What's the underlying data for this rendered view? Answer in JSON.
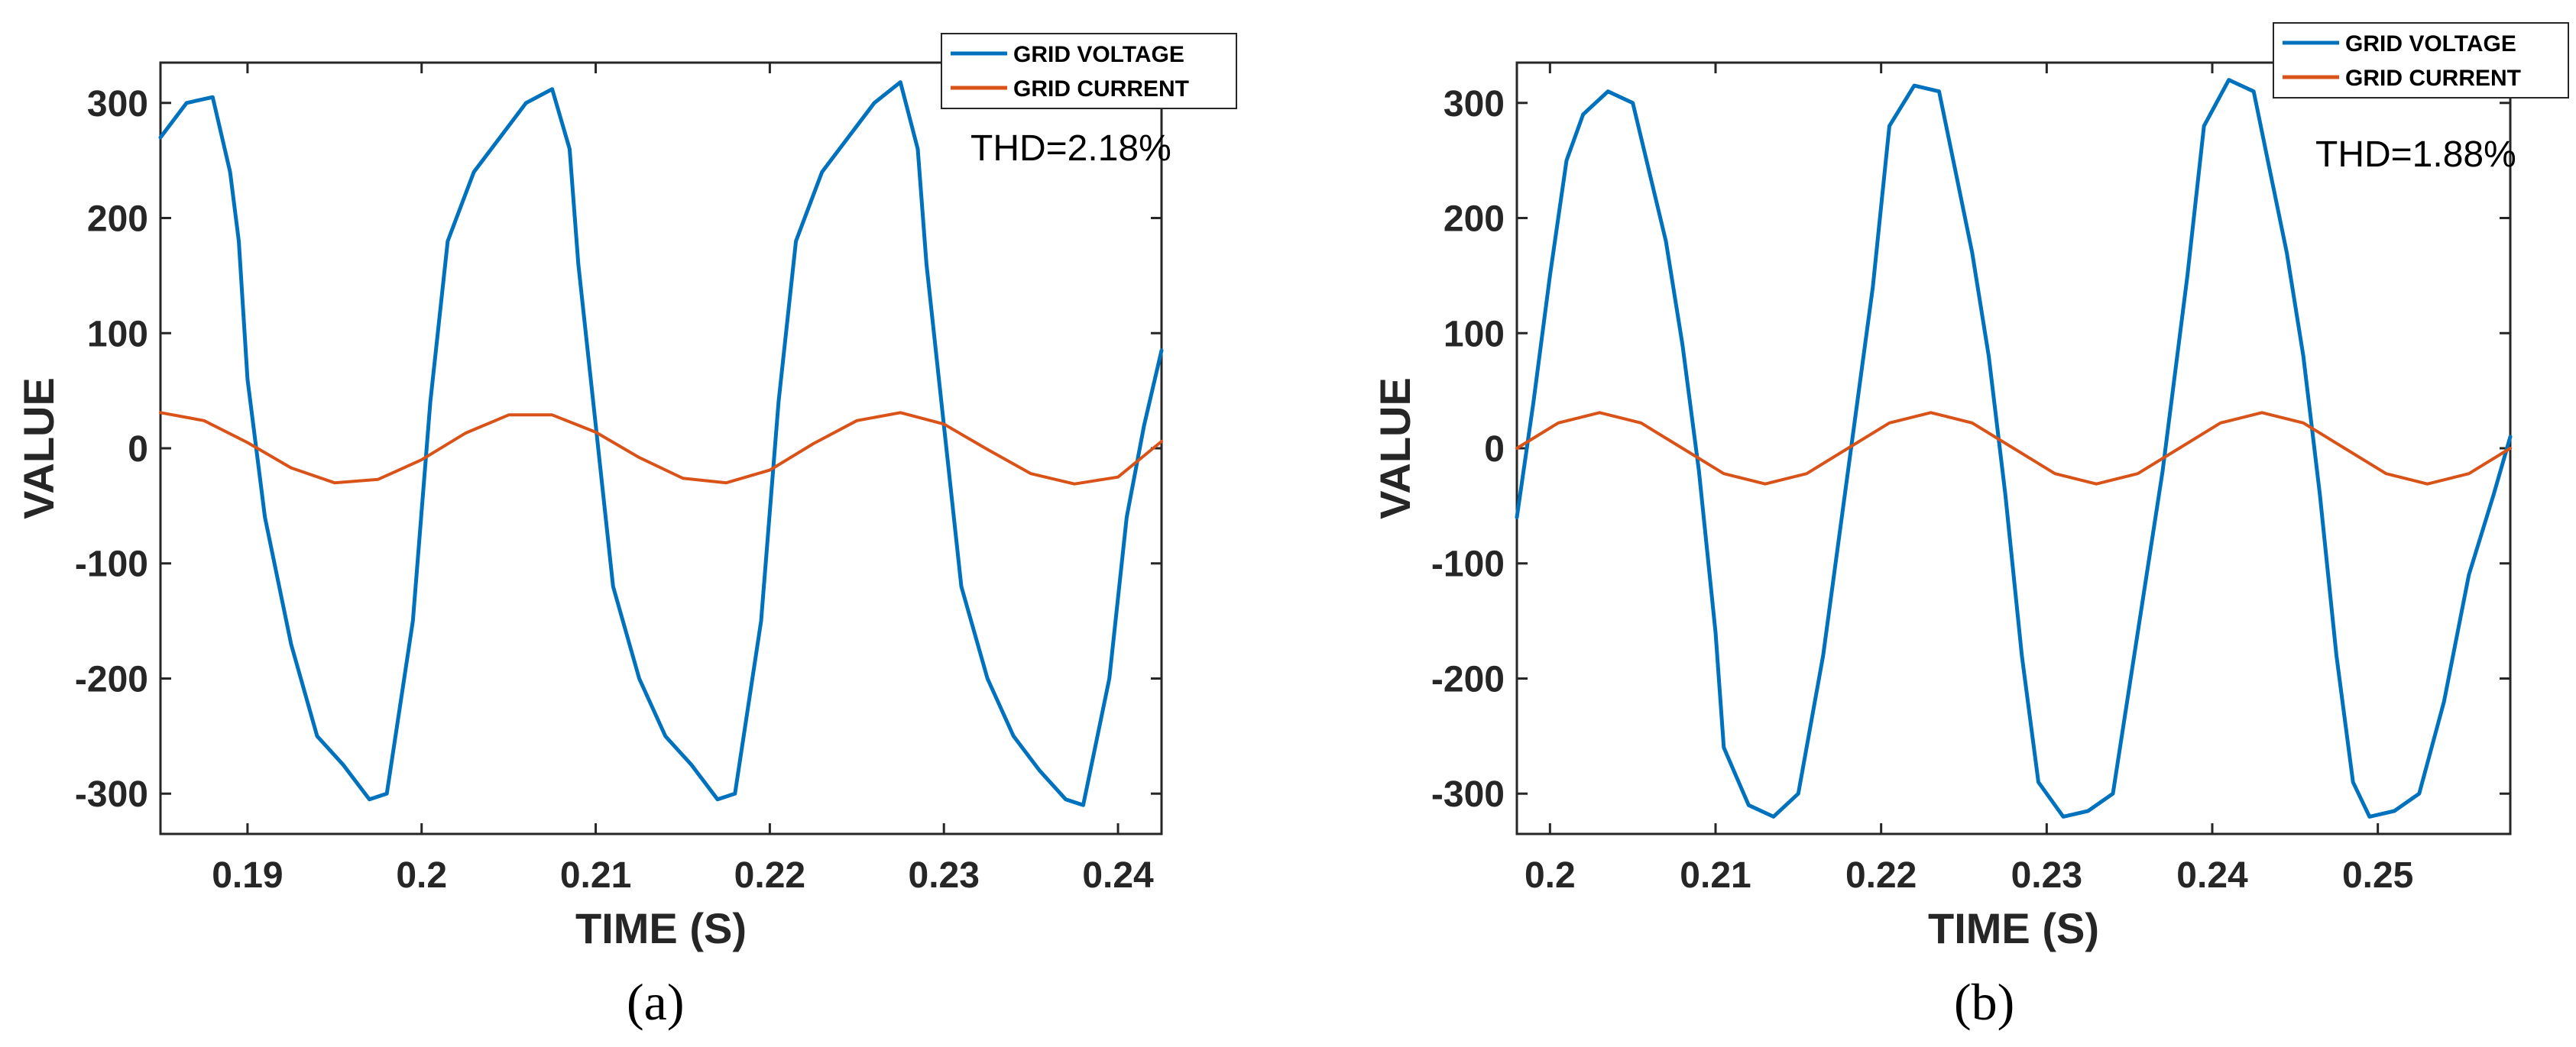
{
  "figure": {
    "panels": [
      "(a)",
      "(b)"
    ]
  },
  "colors": {
    "voltage": "#0072BD",
    "current": "#D95319",
    "axis": "#262626"
  },
  "chart_data": [
    {
      "type": "line",
      "panel_label": "(a)",
      "xlabel": "TIME (S)",
      "ylabel": "VALUE",
      "xlim": [
        0.185,
        0.2425
      ],
      "ylim": [
        -335,
        335
      ],
      "xticks": [
        0.19,
        0.2,
        0.21,
        0.22,
        0.23,
        0.24
      ],
      "xtick_labels": [
        "0.19",
        "0.2",
        "0.21",
        "0.22",
        "0.23",
        "0.24"
      ],
      "yticks": [
        300,
        200,
        100,
        0,
        -100,
        -200,
        -300
      ],
      "ytick_labels": [
        "300",
        "200",
        "100",
        "0",
        "-100",
        "-200",
        "-300"
      ],
      "annotation": "THD=2.18%",
      "legend": {
        "position": "top-right",
        "entries": [
          "GRID VOLTAGE",
          "GRID CURRENT"
        ]
      },
      "series": [
        {
          "name": "GRID VOLTAGE",
          "x": [
            0.185,
            0.1865,
            0.188,
            0.189,
            0.1895,
            0.19,
            0.191,
            0.1925,
            0.194,
            0.1955,
            0.197,
            0.198,
            0.1995,
            0.2005,
            0.2015,
            0.203,
            0.2045,
            0.206,
            0.2075,
            0.2085,
            0.209,
            0.21,
            0.211,
            0.2125,
            0.214,
            0.2155,
            0.217,
            0.218,
            0.2195,
            0.2205,
            0.2215,
            0.223,
            0.2245,
            0.226,
            0.2275,
            0.2285,
            0.229,
            0.23,
            0.231,
            0.2325,
            0.234,
            0.2355,
            0.237,
            0.238,
            0.2395,
            0.2405,
            0.2415,
            0.2425
          ],
          "y": [
            270,
            300,
            305,
            240,
            180,
            60,
            -60,
            -170,
            -250,
            -275,
            -305,
            -300,
            -150,
            40,
            180,
            240,
            270,
            300,
            312,
            260,
            160,
            20,
            -120,
            -200,
            -250,
            -275,
            -305,
            -300,
            -150,
            40,
            180,
            240,
            270,
            300,
            318,
            260,
            160,
            20,
            -120,
            -200,
            -250,
            -280,
            -305,
            -310,
            -200,
            -60,
            20,
            85
          ]
        },
        {
          "name": "GRID CURRENT",
          "x": [
            0.185,
            0.1875,
            0.19,
            0.1925,
            0.195,
            0.1975,
            0.2,
            0.2025,
            0.205,
            0.2075,
            0.21,
            0.2125,
            0.215,
            0.2175,
            0.22,
            0.2225,
            0.225,
            0.2275,
            0.23,
            0.2325,
            0.235,
            0.2375,
            0.24,
            0.2425
          ],
          "y": [
            31,
            24,
            5,
            -17,
            -30,
            -27,
            -10,
            13,
            29,
            29,
            14,
            -8,
            -26,
            -30,
            -19,
            4,
            24,
            31,
            21,
            -1,
            -22,
            -31,
            -25,
            6
          ]
        }
      ]
    },
    {
      "type": "line",
      "panel_label": "(b)",
      "xlabel": "TIME (S)",
      "ylabel": "VALUE",
      "xlim": [
        0.198,
        0.258
      ],
      "ylim": [
        -335,
        335
      ],
      "xticks": [
        0.2,
        0.21,
        0.22,
        0.23,
        0.24,
        0.25
      ],
      "xtick_labels": [
        "0.2",
        "0.21",
        "0.22",
        "0.23",
        "0.24",
        "0.25"
      ],
      "yticks": [
        300,
        200,
        100,
        0,
        -100,
        -200,
        -300
      ],
      "ytick_labels": [
        "300",
        "200",
        "100",
        "0",
        "-100",
        "-200",
        "-300"
      ],
      "annotation": "THD=1.88%",
      "legend": {
        "position": "top-right",
        "entries": [
          "GRID VOLTAGE",
          "GRID CURRENT"
        ]
      },
      "series": [
        {
          "name": "GRID VOLTAGE",
          "x": [
            0.198,
            0.199,
            0.2,
            0.201,
            0.202,
            0.2035,
            0.205,
            0.206,
            0.207,
            0.208,
            0.209,
            0.21,
            0.2105,
            0.212,
            0.2135,
            0.215,
            0.2165,
            0.218,
            0.2195,
            0.2205,
            0.222,
            0.2235,
            0.2245,
            0.2255,
            0.2265,
            0.2275,
            0.2285,
            0.2295,
            0.231,
            0.2325,
            0.234,
            0.2355,
            0.237,
            0.2385,
            0.2395,
            0.241,
            0.2425,
            0.2435,
            0.2445,
            0.2455,
            0.2465,
            0.2475,
            0.2485,
            0.2495,
            0.251,
            0.2525,
            0.254,
            0.2555,
            0.257,
            0.258
          ],
          "y": [
            -60,
            40,
            150,
            250,
            290,
            310,
            300,
            240,
            180,
            90,
            -20,
            -160,
            -260,
            -310,
            -320,
            -300,
            -180,
            -20,
            140,
            280,
            315,
            310,
            240,
            170,
            80,
            -40,
            -180,
            -290,
            -320,
            -315,
            -300,
            -160,
            -20,
            150,
            280,
            320,
            310,
            240,
            170,
            80,
            -40,
            -180,
            -290,
            -320,
            -315,
            -300,
            -220,
            -110,
            -40,
            10
          ]
        },
        {
          "name": "GRID CURRENT",
          "x": [
            0.198,
            0.2005,
            0.203,
            0.2055,
            0.208,
            0.2105,
            0.213,
            0.2155,
            0.218,
            0.2205,
            0.223,
            0.2255,
            0.228,
            0.2305,
            0.233,
            0.2355,
            0.238,
            0.2405,
            0.243,
            0.2455,
            0.248,
            0.2505,
            0.253,
            0.2555,
            0.258
          ],
          "y": [
            0,
            22,
            31,
            22,
            0,
            -22,
            -31,
            -22,
            0,
            22,
            31,
            22,
            0,
            -22,
            -31,
            -22,
            0,
            22,
            31,
            22,
            0,
            -22,
            -31,
            -22,
            0
          ]
        }
      ]
    }
  ]
}
